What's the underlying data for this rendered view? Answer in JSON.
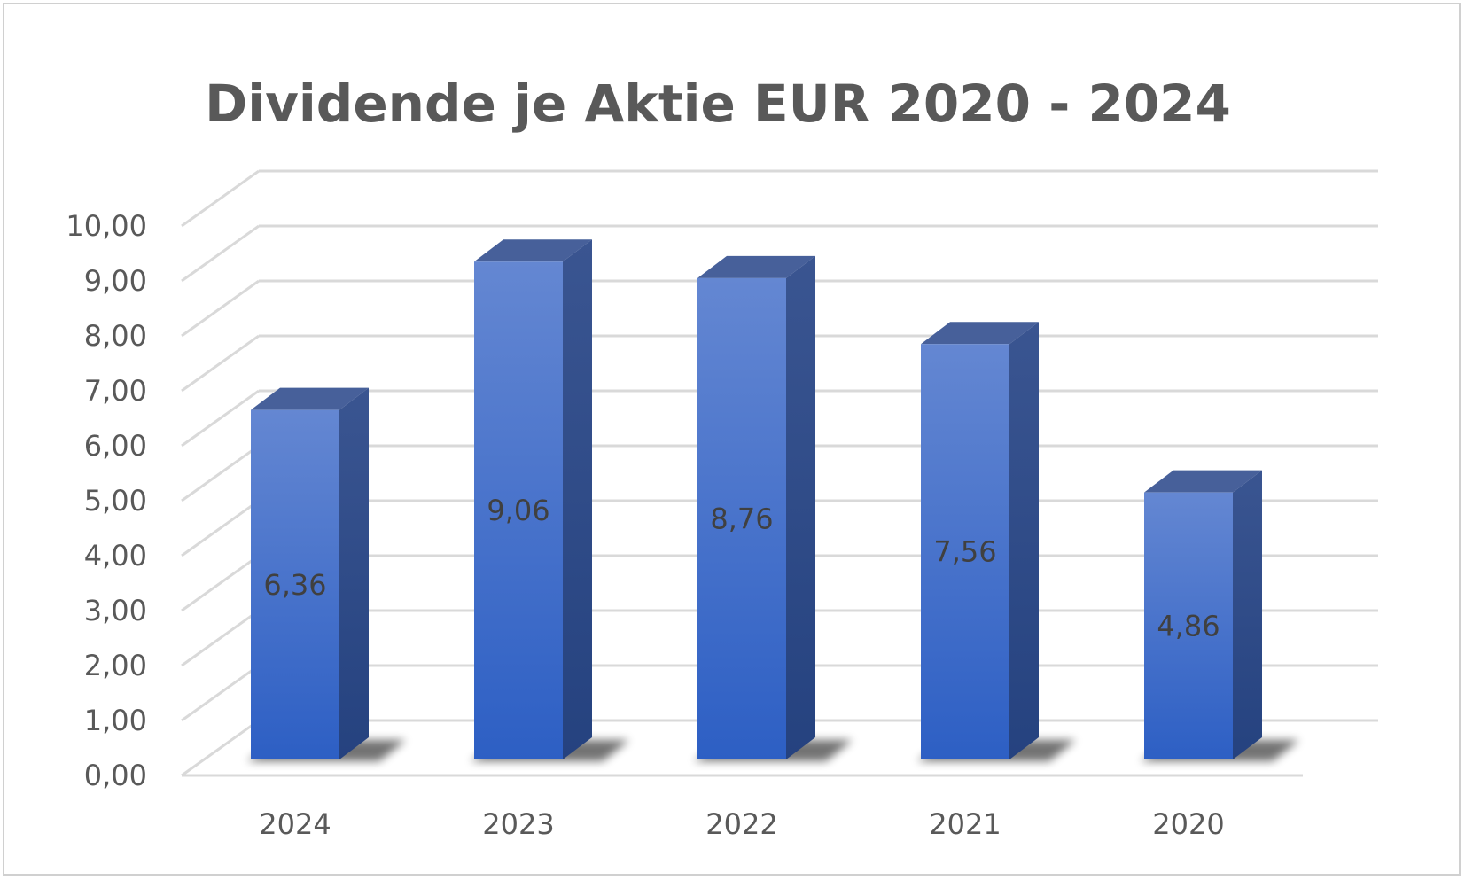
{
  "chart_data": {
    "type": "bar",
    "title": "Dividende je Aktie EUR 2020 - 2024",
    "categories": [
      "2024",
      "2023",
      "2022",
      "2021",
      "2020"
    ],
    "values": [
      6.36,
      9.06,
      8.76,
      7.56,
      4.86
    ],
    "data_labels": [
      "6,36",
      "9,06",
      "8,76",
      "7,56",
      "4,86"
    ],
    "ylim": [
      0,
      10
    ],
    "yticks": [
      0,
      1,
      2,
      3,
      4,
      5,
      6,
      7,
      8,
      9,
      10
    ],
    "ytick_labels": [
      "0,00",
      "1,00",
      "2,00",
      "3,00",
      "4,00",
      "5,00",
      "6,00",
      "7,00",
      "8,00",
      "9,00",
      "10,00"
    ],
    "grid": true,
    "legend": "none",
    "style": "3d-column",
    "colors": {
      "bar_front_top": "#6487d2",
      "bar_front_bottom": "#2d5fc4",
      "bar_side": "#25427f",
      "bar_top": "#47609a",
      "grid": "#d9d9d9",
      "text": "#595959"
    }
  }
}
